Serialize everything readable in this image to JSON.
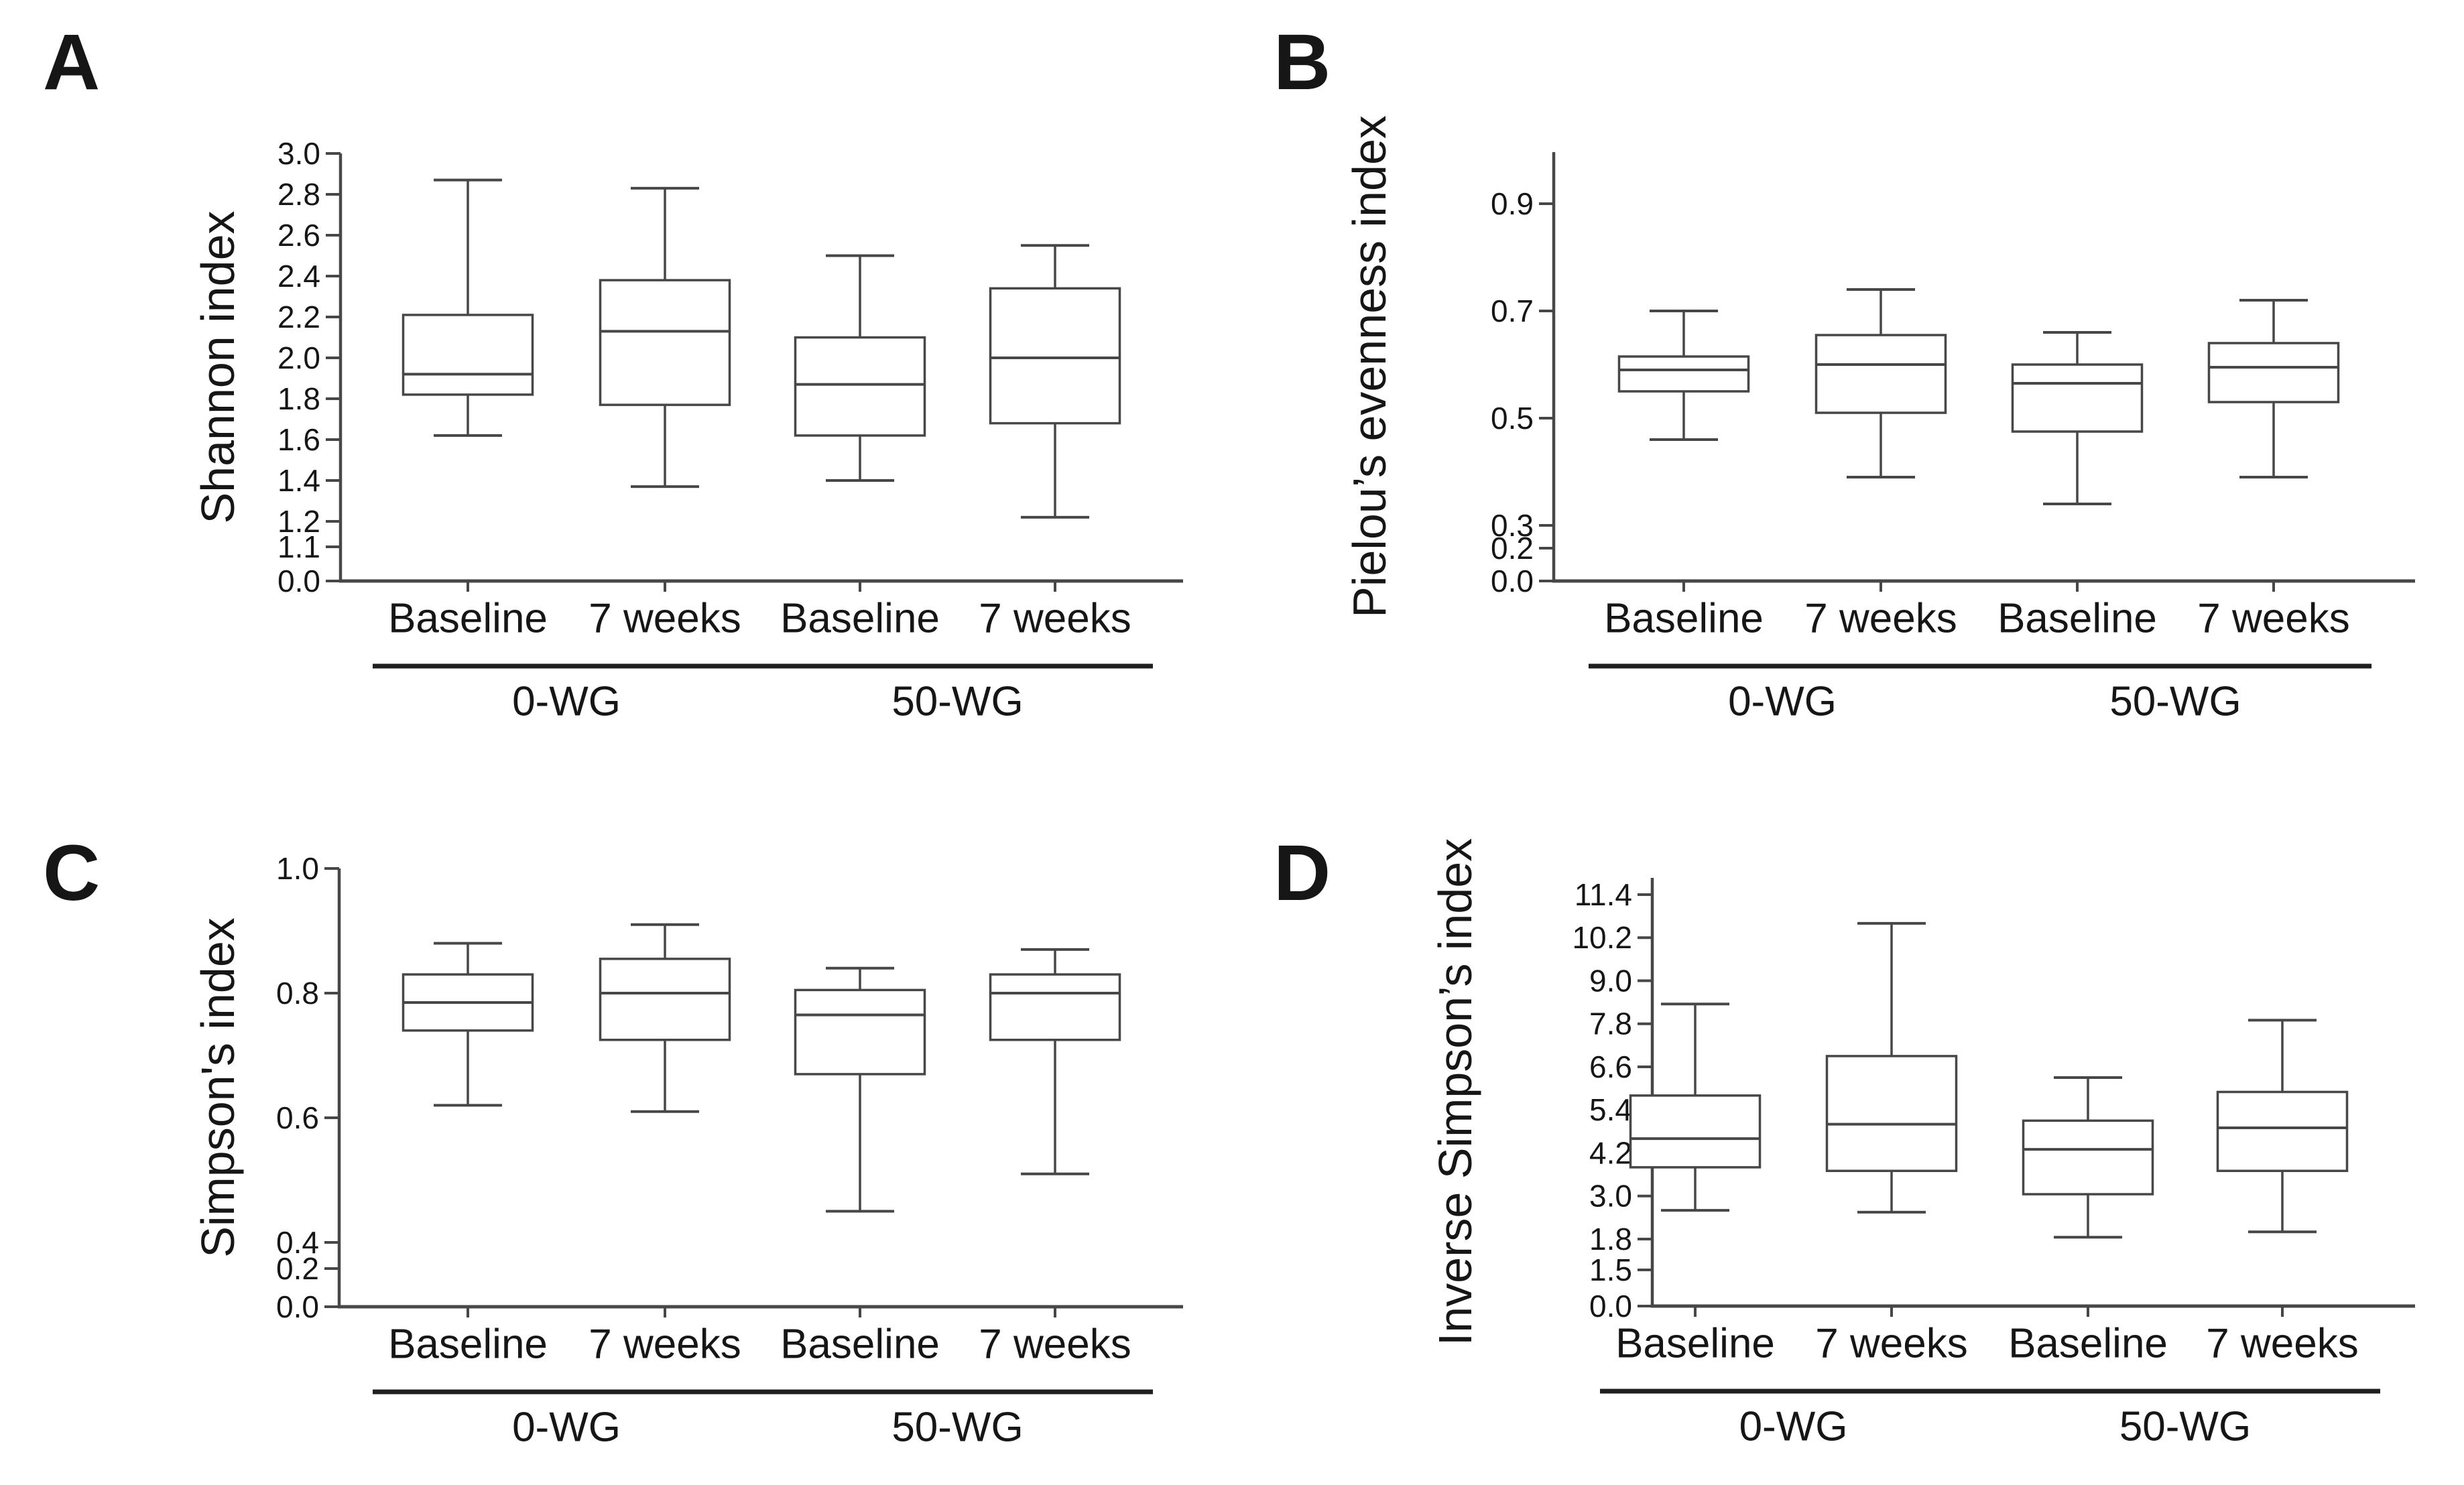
{
  "figure": {
    "background": "#ffffff",
    "text_color": "#161616",
    "line_color": "#474747",
    "group_rule_color": "#1f1f1f"
  },
  "groups": [
    "0-WG",
    "50-WG"
  ],
  "conditions": [
    "Baseline",
    "7 weeks"
  ],
  "chart_data": [
    {
      "panel": "A",
      "type": "box",
      "title": "",
      "ylabel": "Shannon index",
      "categories": [
        "Baseline",
        "7 weeks",
        "Baseline",
        "7 weeks"
      ],
      "group_labels": [
        "0-WG",
        "50-WG"
      ],
      "y_axis": {
        "linear_ticks": [
          3.0,
          2.8,
          2.6,
          2.4,
          2.2,
          2.0,
          1.8,
          1.6,
          1.4,
          1.2
        ],
        "compressed_ticks": [
          1.1,
          0.0
        ],
        "note": "axis break between 0.0 and 1.2",
        "grid": false
      },
      "boxes": [
        {
          "group": "0-WG",
          "condition": "Baseline",
          "min": 1.62,
          "q1": 1.82,
          "median": 1.92,
          "q3": 2.21,
          "max": 2.87
        },
        {
          "group": "0-WG",
          "condition": "7 weeks",
          "min": 1.37,
          "q1": 1.77,
          "median": 2.13,
          "q3": 2.38,
          "max": 2.83
        },
        {
          "group": "50-WG",
          "condition": "Baseline",
          "min": 1.4,
          "q1": 1.62,
          "median": 1.87,
          "q3": 2.1,
          "max": 2.5
        },
        {
          "group": "50-WG",
          "condition": "7 weeks",
          "min": 1.22,
          "q1": 1.68,
          "median": 2.0,
          "q3": 2.34,
          "max": 2.55
        }
      ]
    },
    {
      "panel": "B",
      "type": "box",
      "title": "",
      "ylabel": "Pielou’s evenness index",
      "categories": [
        "Baseline",
        "7 weeks",
        "Baseline",
        "7 weeks"
      ],
      "group_labels": [
        "0-WG",
        "50-WG"
      ],
      "y_axis": {
        "linear_ticks": [
          0.9,
          0.7,
          0.5,
          0.3
        ],
        "compressed_ticks": [
          0.2,
          0.0
        ],
        "note": "axis break between 0.0 and 0.3",
        "grid": false
      },
      "boxes": [
        {
          "group": "0-WG",
          "condition": "Baseline",
          "min": 0.46,
          "q1": 0.55,
          "median": 0.59,
          "q3": 0.615,
          "max": 0.7
        },
        {
          "group": "0-WG",
          "condition": "7 weeks",
          "min": 0.39,
          "q1": 0.51,
          "median": 0.6,
          "q3": 0.655,
          "max": 0.74
        },
        {
          "group": "50-WG",
          "condition": "Baseline",
          "min": 0.34,
          "q1": 0.475,
          "median": 0.565,
          "q3": 0.6,
          "max": 0.66
        },
        {
          "group": "50-WG",
          "condition": "7 weeks",
          "min": 0.39,
          "q1": 0.53,
          "median": 0.595,
          "q3": 0.64,
          "max": 0.72
        }
      ]
    },
    {
      "panel": "C",
      "type": "box",
      "title": "",
      "ylabel": "Simpson's index",
      "categories": [
        "Baseline",
        "7 weeks",
        "Baseline",
        "7 weeks"
      ],
      "group_labels": [
        "0-WG",
        "50-WG"
      ],
      "y_axis": {
        "linear_ticks": [
          1.0,
          0.8,
          0.6,
          0.4
        ],
        "compressed_ticks": [
          0.2,
          0.0
        ],
        "note": "axis break between 0.0 and 0.4",
        "grid": false
      },
      "boxes": [
        {
          "group": "0-WG",
          "condition": "Baseline",
          "min": 0.62,
          "q1": 0.74,
          "median": 0.785,
          "q3": 0.83,
          "max": 0.88
        },
        {
          "group": "0-WG",
          "condition": "7 weeks",
          "min": 0.61,
          "q1": 0.725,
          "median": 0.8,
          "q3": 0.855,
          "max": 0.91
        },
        {
          "group": "50-WG",
          "condition": "Baseline",
          "min": 0.45,
          "q1": 0.67,
          "median": 0.765,
          "q3": 0.805,
          "max": 0.84
        },
        {
          "group": "50-WG",
          "condition": "7 weeks",
          "min": 0.51,
          "q1": 0.725,
          "median": 0.8,
          "q3": 0.83,
          "max": 0.87
        }
      ]
    },
    {
      "panel": "D",
      "type": "box",
      "title": "",
      "ylabel": "Inverse Simpson’s index",
      "categories": [
        "Baseline",
        "7 weeks",
        "Baseline",
        "7 weeks"
      ],
      "group_labels": [
        "0-WG",
        "50-WG"
      ],
      "y_axis": {
        "linear_ticks": [
          11.4,
          10.2,
          9.0,
          7.8,
          6.6,
          5.4,
          4.2,
          3.0,
          1.8
        ],
        "compressed_ticks": [
          1.5,
          0.0
        ],
        "note": "axis break between 0.0 and 1.8",
        "grid": false
      },
      "boxes": [
        {
          "group": "0-WG",
          "condition": "Baseline",
          "min": 2.6,
          "q1": 3.8,
          "median": 4.6,
          "q3": 5.8,
          "max": 8.35
        },
        {
          "group": "0-WG",
          "condition": "7 weeks",
          "min": 2.55,
          "q1": 3.7,
          "median": 5.0,
          "q3": 6.9,
          "max": 10.6
        },
        {
          "group": "50-WG",
          "condition": "Baseline",
          "min": 1.85,
          "q1": 3.05,
          "median": 4.3,
          "q3": 5.1,
          "max": 6.3
        },
        {
          "group": "50-WG",
          "condition": "7 weeks",
          "min": 2.0,
          "q1": 3.7,
          "median": 4.9,
          "q3": 5.9,
          "max": 7.9
        }
      ]
    }
  ]
}
